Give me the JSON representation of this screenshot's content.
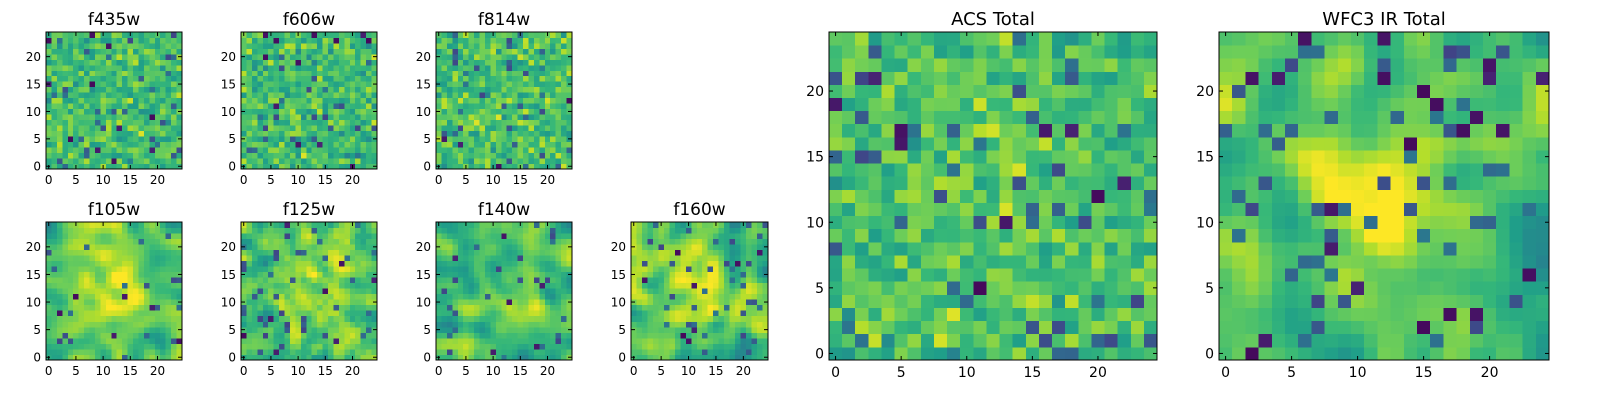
{
  "chart_data": [
    {
      "type": "heatmap",
      "title": "f435w",
      "xticks": [
        "0",
        "5",
        "10",
        "15",
        "20"
      ],
      "yticks": [
        "0",
        "5",
        "10",
        "15",
        "20"
      ],
      "xlim": [
        -0.5,
        24.5
      ],
      "ylim": [
        -0.5,
        24.5
      ],
      "grid_size": 25,
      "seed": 11,
      "smooth": 0,
      "center_bump": 0,
      "dark_fraction": 0.015,
      "palette": "viridis",
      "value_range": [
        0,
        1
      ]
    },
    {
      "type": "heatmap",
      "title": "f606w",
      "xticks": [
        "0",
        "5",
        "10",
        "15",
        "20"
      ],
      "yticks": [
        "0",
        "5",
        "10",
        "15",
        "20"
      ],
      "xlim": [
        -0.5,
        24.5
      ],
      "ylim": [
        -0.5,
        24.5
      ],
      "grid_size": 25,
      "seed": 23,
      "smooth": 0,
      "center_bump": 0,
      "dark_fraction": 0.015,
      "palette": "viridis",
      "value_range": [
        0,
        1
      ]
    },
    {
      "type": "heatmap",
      "title": "f814w",
      "xticks": [
        "0",
        "5",
        "10",
        "15",
        "20"
      ],
      "yticks": [
        "0",
        "5",
        "10",
        "15",
        "20"
      ],
      "xlim": [
        -0.5,
        24.5
      ],
      "ylim": [
        -0.5,
        24.5
      ],
      "grid_size": 25,
      "seed": 37,
      "smooth": 0,
      "center_bump": 0,
      "dark_fraction": 0.015,
      "palette": "viridis",
      "value_range": [
        0,
        1
      ]
    },
    {
      "type": "heatmap",
      "title": "f105w",
      "xticks": [
        "0",
        "5",
        "10",
        "15",
        "20"
      ],
      "yticks": [
        "0",
        "5",
        "10",
        "15",
        "20"
      ],
      "xlim": [
        -0.5,
        24.5
      ],
      "ylim": [
        -0.5,
        24.5
      ],
      "grid_size": 25,
      "seed": 41,
      "smooth": 2,
      "center_bump": 0.22,
      "dark_fraction": 0.01,
      "palette": "viridis",
      "value_range": [
        0,
        1
      ]
    },
    {
      "type": "heatmap",
      "title": "f125w",
      "xticks": [
        "0",
        "5",
        "10",
        "15",
        "20"
      ],
      "yticks": [
        "0",
        "5",
        "10",
        "15",
        "20"
      ],
      "xlim": [
        -0.5,
        24.5
      ],
      "ylim": [
        -0.5,
        24.5
      ],
      "grid_size": 25,
      "seed": 53,
      "smooth": 1,
      "center_bump": 0.15,
      "dark_fraction": 0.015,
      "palette": "viridis",
      "value_range": [
        0,
        1
      ]
    },
    {
      "type": "heatmap",
      "title": "f140w",
      "xticks": [
        "0",
        "5",
        "10",
        "15",
        "20"
      ],
      "yticks": [
        "0",
        "5",
        "10",
        "15",
        "20"
      ],
      "xlim": [
        -0.5,
        24.5
      ],
      "ylim": [
        -0.5,
        24.5
      ],
      "grid_size": 25,
      "seed": 67,
      "smooth": 2,
      "center_bump": 0.1,
      "dark_fraction": 0.012,
      "palette": "viridis",
      "value_range": [
        0,
        1
      ]
    },
    {
      "type": "heatmap",
      "title": "f160w",
      "xticks": [
        "0",
        "5",
        "10",
        "15",
        "20"
      ],
      "yticks": [
        "0",
        "5",
        "10",
        "15",
        "20"
      ],
      "xlim": [
        -0.5,
        24.5
      ],
      "ylim": [
        -0.5,
        24.5
      ],
      "grid_size": 25,
      "seed": 79,
      "smooth": 2,
      "center_bump": 0.15,
      "dark_fraction": 0.015,
      "palette": "viridis",
      "value_range": [
        0,
        1
      ]
    },
    {
      "type": "heatmap",
      "title": "ACS Total",
      "xticks": [
        "0",
        "5",
        "10",
        "15",
        "20"
      ],
      "yticks": [
        "0",
        "5",
        "10",
        "15",
        "20"
      ],
      "xlim": [
        -0.5,
        24.5
      ],
      "ylim": [
        -0.5,
        24.5
      ],
      "grid_size": 25,
      "seed": 97,
      "smooth": 0,
      "center_bump": 0.05,
      "dark_fraction": 0.02,
      "palette": "viridis",
      "value_range": [
        0,
        1
      ]
    },
    {
      "type": "heatmap",
      "title": "WFC3 IR Total",
      "xticks": [
        "0",
        "5",
        "10",
        "15",
        "20"
      ],
      "yticks": [
        "0",
        "5",
        "10",
        "15",
        "20"
      ],
      "xlim": [
        -0.5,
        24.5
      ],
      "ylim": [
        -0.5,
        24.5
      ],
      "grid_size": 25,
      "seed": 131,
      "smooth": 2,
      "center_bump": 0.3,
      "dark_fraction": 0.025,
      "palette": "viridis",
      "value_range": [
        0,
        1
      ]
    }
  ],
  "colors": {
    "viridis_stops": [
      "#440154",
      "#482878",
      "#3e4989",
      "#31688e",
      "#26828e",
      "#1f9e89",
      "#35b779",
      "#6ece58",
      "#b5de2b",
      "#fde725"
    ],
    "axis_frame": "#000000",
    "background": "#ffffff"
  }
}
